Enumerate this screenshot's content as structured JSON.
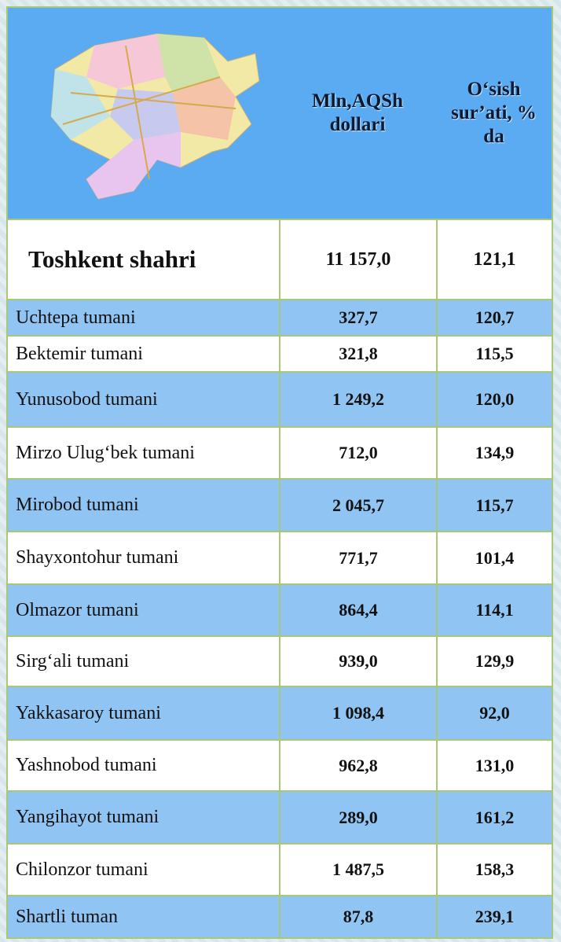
{
  "table": {
    "header": [
      "Mln,AQSh dollari",
      "O‘sish sur’ati, % da"
    ],
    "total": [
      "Toshkent shahri",
      "11 157,0",
      "121,1"
    ],
    "rows": [
      [
        "Uchtepa tumani",
        "327,7",
        "120,7"
      ],
      [
        "Bektemir tumani",
        "321,8",
        "115,5"
      ],
      [
        "Yunusobod tumani",
        "1 249,2",
        "120,0"
      ],
      [
        "Mirzo Ulug‘bek tumani",
        "712,0",
        "134,9"
      ],
      [
        "Mirobod tumani",
        "2 045,7",
        "115,7"
      ],
      [
        "Shayxontohur tumani",
        "771,7",
        "101,4"
      ],
      [
        "Olmazor tumani",
        "864,4",
        "114,1"
      ],
      [
        "Sirg‘ali tumani",
        "939,0",
        "129,9"
      ],
      [
        "Yakkasaroy tumani",
        "1 098,4",
        "92,0"
      ],
      [
        "Yashnobod tumani",
        "962,8",
        "131,0"
      ],
      [
        "Yangihayot tumani",
        "289,0",
        "161,2"
      ],
      [
        "Chilonzor tumani",
        "1 487,5",
        "158,3"
      ],
      [
        "Shartli tuman",
        "87,8",
        "239,1"
      ]
    ]
  }
}
